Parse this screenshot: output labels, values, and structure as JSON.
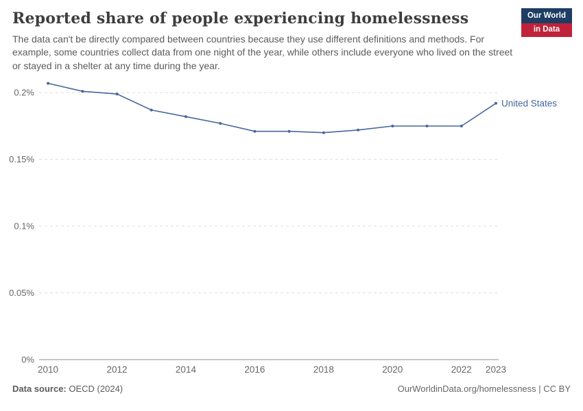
{
  "header": {
    "title": "Reported share of people experiencing homelessness",
    "subtitle": "The data can't be directly compared between countries because they use different definitions and methods. For example, some countries collect data from one night of the year, while others include everyone who lived on the street or stayed in a shelter at any time during the year.",
    "logo": {
      "line1": "Our World",
      "line2": "in Data"
    }
  },
  "chart_data": {
    "type": "line",
    "title": "Reported share of people experiencing homelessness",
    "x": [
      2010,
      2011,
      2012,
      2013,
      2014,
      2015,
      2016,
      2017,
      2018,
      2019,
      2020,
      2021,
      2022,
      2023
    ],
    "series": [
      {
        "name": "United States",
        "color": "#44679b",
        "values": [
          0.207,
          0.201,
          0.199,
          0.187,
          0.182,
          0.177,
          0.171,
          0.171,
          0.17,
          0.172,
          0.175,
          0.175,
          0.175,
          0.192
        ]
      }
    ],
    "xticks": [
      "2010",
      "2012",
      "2014",
      "2016",
      "2018",
      "2020",
      "2022",
      "2023"
    ],
    "yticks": [
      0,
      0.05,
      0.1,
      0.15,
      0.2
    ],
    "ytick_labels": [
      "0%",
      "0.05%",
      "0.1%",
      "0.15%",
      "0.2%"
    ],
    "xlim": [
      2009.74,
      2023.08
    ],
    "ylim": [
      0,
      0.215
    ],
    "grid": true,
    "legend_position": "end-of-line-label",
    "colors": {
      "grid": "#dddddd",
      "axis": "#8f8f8f",
      "tick_text": "#666666"
    }
  },
  "footer": {
    "datasource_label": "Data source:",
    "datasource_value": "OECD (2024)",
    "link": "OurWorldinData.org/homelessness | CC BY"
  }
}
